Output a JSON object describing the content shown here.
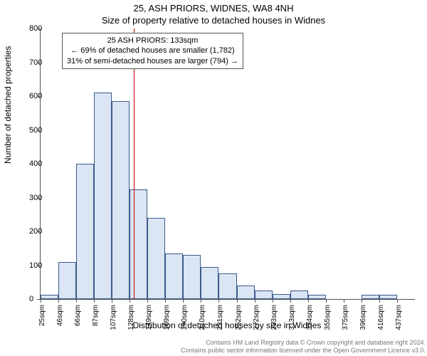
{
  "title": "25, ASH PRIORS, WIDNES, WA8 4NH",
  "subtitle": "Size of property relative to detached houses in Widnes",
  "ylabel": "Number of detached properties",
  "xlabel": "Distribution of detached houses by size in Widnes",
  "chart": {
    "type": "histogram",
    "ylim": [
      0,
      800
    ],
    "ytick_step": 100,
    "yticks": [
      0,
      100,
      200,
      300,
      400,
      500,
      600,
      700,
      800
    ],
    "x_categories": [
      "25sqm",
      "46sqm",
      "66sqm",
      "87sqm",
      "107sqm",
      "128sqm",
      "149sqm",
      "169sqm",
      "190sqm",
      "210sqm",
      "231sqm",
      "252sqm",
      "272sqm",
      "293sqm",
      "313sqm",
      "334sqm",
      "355sqm",
      "375sqm",
      "396sqm",
      "416sqm",
      "437sqm"
    ],
    "values": [
      12,
      110,
      400,
      610,
      585,
      325,
      240,
      135,
      130,
      95,
      75,
      40,
      25,
      15,
      25,
      12,
      0,
      0,
      12,
      12,
      0
    ],
    "bar_fill": "#dbe5f4",
    "bar_stroke": "#3b5a8c",
    "bar_stroke_width": 0.5,
    "reference_line": {
      "x_value": 133,
      "color": "#cc0000"
    },
    "annotation": {
      "line1": "25 ASH PRIORS: 133sqm",
      "line2": "← 69% of detached houses are smaller (1,782)",
      "line3": "31% of semi-detached houses are larger (794) →"
    },
    "background_color": "#ffffff",
    "axis_color": "#555555",
    "font_size_axis": 11,
    "font_size_title": 13
  },
  "footer": {
    "line1": "Contains HM Land Registry data © Crown copyright and database right 2024.",
    "line2": "Contains public sector information licensed under the Open Government Licence v3.0."
  }
}
